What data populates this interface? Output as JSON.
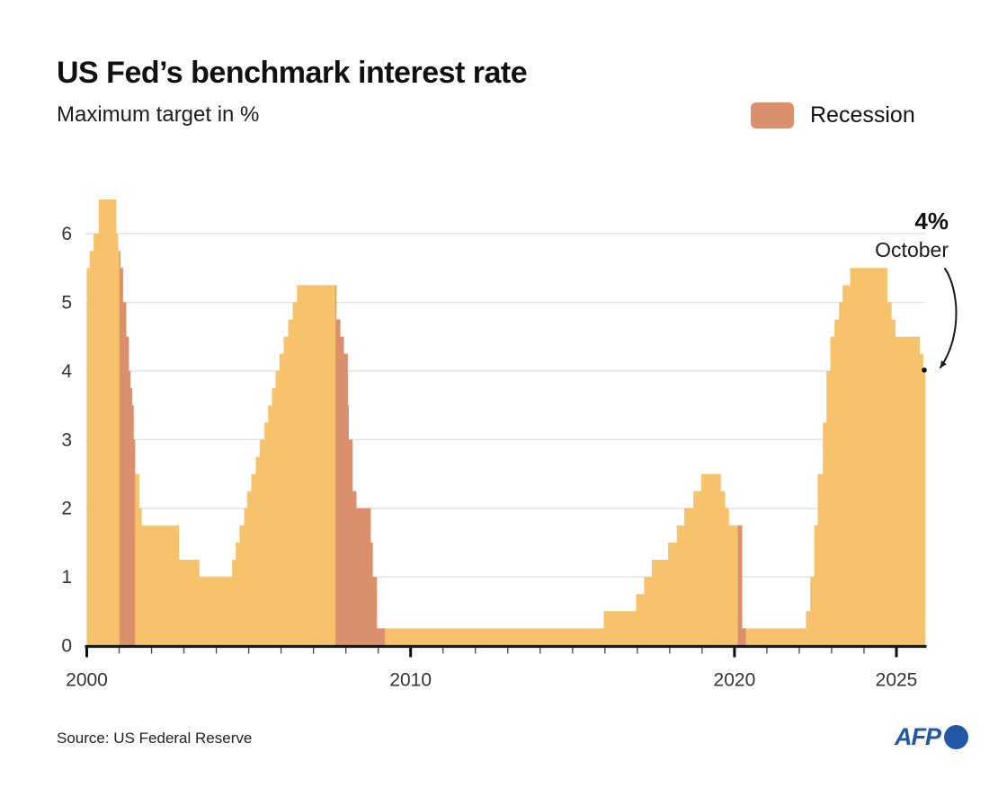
{
  "header": {
    "title": "US Fed’s benchmark interest rate",
    "subtitle": "Maximum target in %"
  },
  "legend": {
    "label": "Recession"
  },
  "annotation": {
    "value": "4%",
    "label": "October"
  },
  "footer": {
    "source": "Source: US Federal Reserve",
    "agency": "AFP"
  },
  "colors": {
    "area": "#F6C36C",
    "recession": "#DC8F6D",
    "axis": "#1a1a1a",
    "grid": "#e3e3e3",
    "tick_label": "#333333",
    "afp_blue": "#2257A6",
    "annotation_arrow": "#1a1a1a"
  },
  "chart_data": {
    "type": "area",
    "title": "US Fed's benchmark interest rate",
    "subtitle": "Maximum target in %",
    "unit": "%",
    "x_domain": [
      2000,
      2025.89
    ],
    "y_domain": [
      0,
      6.5
    ],
    "grid": "horizontal-only",
    "x_major_ticks": [
      {
        "value": 2000,
        "label": "2000"
      },
      {
        "value": 2010,
        "label": "2010"
      },
      {
        "value": 2020,
        "label": "2020"
      },
      {
        "value": 2025,
        "label": "2025"
      }
    ],
    "y_ticks": [
      {
        "value": 0,
        "label": "0"
      },
      {
        "value": 1,
        "label": "1"
      },
      {
        "value": 2,
        "label": "2"
      },
      {
        "value": 3,
        "label": "3"
      },
      {
        "value": 4,
        "label": "4"
      },
      {
        "value": 5,
        "label": "5"
      },
      {
        "value": 6,
        "label": "6"
      }
    ],
    "series": [
      {
        "name": "Fed benchmark rate (maximum target, %)",
        "points": [
          [
            2000.0,
            5.5
          ],
          [
            2000.09,
            5.75
          ],
          [
            2000.21,
            6.0
          ],
          [
            2000.37,
            6.5
          ],
          [
            2000.91,
            6.0
          ],
          [
            2000.97,
            5.75
          ],
          [
            2001.04,
            5.5
          ],
          [
            2001.12,
            5.0
          ],
          [
            2001.22,
            4.5
          ],
          [
            2001.3,
            4.0
          ],
          [
            2001.35,
            3.75
          ],
          [
            2001.4,
            3.5
          ],
          [
            2001.45,
            3.0
          ],
          [
            2001.5,
            2.5
          ],
          [
            2001.62,
            2.0
          ],
          [
            2001.7,
            1.75
          ],
          [
            2002.85,
            1.25
          ],
          [
            2003.48,
            1.0
          ],
          [
            2004.49,
            1.25
          ],
          [
            2004.6,
            1.5
          ],
          [
            2004.72,
            1.75
          ],
          [
            2004.86,
            2.0
          ],
          [
            2004.95,
            2.25
          ],
          [
            2005.08,
            2.5
          ],
          [
            2005.22,
            2.75
          ],
          [
            2005.34,
            3.0
          ],
          [
            2005.49,
            3.25
          ],
          [
            2005.6,
            3.5
          ],
          [
            2005.72,
            3.75
          ],
          [
            2005.83,
            4.0
          ],
          [
            2005.95,
            4.25
          ],
          [
            2006.08,
            4.5
          ],
          [
            2006.22,
            4.75
          ],
          [
            2006.36,
            5.0
          ],
          [
            2006.49,
            5.25
          ],
          [
            2007.71,
            4.75
          ],
          [
            2007.83,
            4.5
          ],
          [
            2007.94,
            4.25
          ],
          [
            2008.06,
            3.5
          ],
          [
            2008.09,
            3.0
          ],
          [
            2008.21,
            2.25
          ],
          [
            2008.33,
            2.0
          ],
          [
            2008.77,
            1.5
          ],
          [
            2008.83,
            1.0
          ],
          [
            2008.96,
            0.25
          ],
          [
            2015.96,
            0.5
          ],
          [
            2016.96,
            0.75
          ],
          [
            2017.21,
            1.0
          ],
          [
            2017.45,
            1.25
          ],
          [
            2017.95,
            1.5
          ],
          [
            2018.22,
            1.75
          ],
          [
            2018.45,
            2.0
          ],
          [
            2018.73,
            2.25
          ],
          [
            2018.97,
            2.5
          ],
          [
            2019.58,
            2.25
          ],
          [
            2019.71,
            2.0
          ],
          [
            2019.83,
            1.75
          ],
          [
            2020.24,
            0.25
          ],
          [
            2022.21,
            0.5
          ],
          [
            2022.34,
            1.0
          ],
          [
            2022.46,
            1.75
          ],
          [
            2022.57,
            2.5
          ],
          [
            2022.73,
            3.25
          ],
          [
            2022.84,
            4.0
          ],
          [
            2022.96,
            4.5
          ],
          [
            2023.09,
            4.75
          ],
          [
            2023.23,
            5.0
          ],
          [
            2023.34,
            5.25
          ],
          [
            2023.57,
            5.5
          ],
          [
            2024.72,
            5.0
          ],
          [
            2024.85,
            4.75
          ],
          [
            2024.97,
            4.5
          ],
          [
            2025.72,
            4.25
          ],
          [
            2025.83,
            4.0
          ]
        ]
      }
    ],
    "recessions": [
      [
        2001.01,
        2001.49
      ],
      [
        2007.68,
        2009.21
      ],
      [
        2020.1,
        2020.35
      ]
    ],
    "end_point": {
      "t": 2025.86,
      "v": 4.0,
      "label": "4%",
      "sublabel": "October"
    },
    "legend": [
      {
        "label": "Recession",
        "color": "#DC8F6D"
      }
    ]
  }
}
